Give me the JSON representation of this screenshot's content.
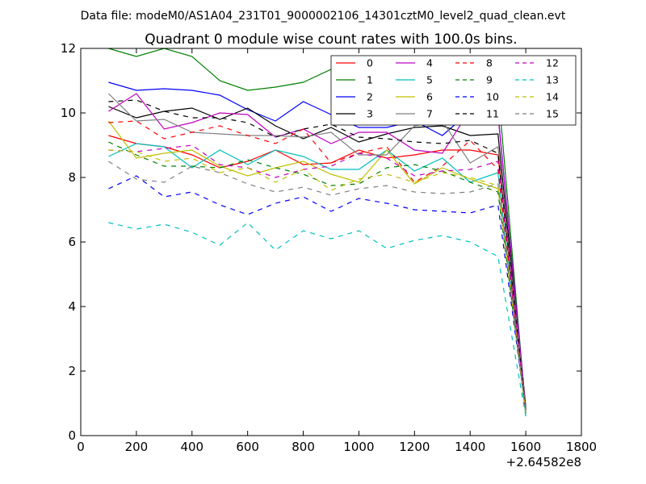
{
  "header": {
    "datafile": "Data file: modeM0/AS1A04_231T01_9000002106_14301cztM0_level2_quad_clean.evt"
  },
  "chart_data": {
    "type": "line",
    "title": "Quadrant 0 module wise count rates with 100.0s bins.",
    "xlabel": "",
    "ylabel": "",
    "x_offset_label": "+2.64582e8",
    "xlim": [
      0,
      1800
    ],
    "ylim": [
      0,
      12
    ],
    "x_ticks": [
      "0",
      "200",
      "400",
      "600",
      "800",
      "1000",
      "1200",
      "1400",
      "1600",
      "1800"
    ],
    "y_ticks": [
      "0",
      "2",
      "4",
      "6",
      "8",
      "10",
      "12"
    ],
    "grid": false,
    "legend_position": "top-right",
    "x": [
      100,
      200,
      300,
      400,
      500,
      600,
      700,
      800,
      900,
      1000,
      1100,
      1200,
      1300,
      1400,
      1500,
      1600
    ],
    "series": [
      {
        "name": "0",
        "color": "#ff0000",
        "dash": "solid",
        "values": [
          9.3,
          9.05,
          8.95,
          8.7,
          8.3,
          8.5,
          8.85,
          8.4,
          8.45,
          8.85,
          8.6,
          8.7,
          8.85,
          8.85,
          8.7,
          0.7
        ]
      },
      {
        "name": "1",
        "color": "#008000",
        "dash": "solid",
        "values": [
          12.0,
          11.75,
          12.0,
          11.75,
          11.0,
          10.7,
          10.8,
          10.95,
          11.35,
          10.6,
          10.25,
          11.0,
          10.55,
          10.85,
          10.8,
          0.75
        ]
      },
      {
        "name": "2",
        "color": "#0000ff",
        "dash": "solid",
        "values": [
          10.95,
          10.7,
          10.75,
          10.7,
          10.55,
          10.1,
          9.75,
          10.35,
          9.95,
          9.55,
          9.55,
          9.75,
          9.3,
          10.05,
          10.0,
          0.85
        ]
      },
      {
        "name": "3",
        "color": "#000000",
        "dash": "solid",
        "values": [
          10.2,
          9.85,
          10.05,
          10.15,
          9.8,
          10.15,
          9.6,
          9.2,
          9.55,
          9.1,
          9.35,
          9.55,
          9.6,
          9.3,
          9.35,
          0.9
        ]
      },
      {
        "name": "4",
        "color": "#bf00bf",
        "dash": "solid",
        "values": [
          10.05,
          10.6,
          9.5,
          9.7,
          10.0,
          9.95,
          9.25,
          9.5,
          9.05,
          9.4,
          9.4,
          8.85,
          8.75,
          10.1,
          9.95,
          0.8
        ]
      },
      {
        "name": "5",
        "color": "#00bfbf",
        "dash": "solid",
        "values": [
          8.65,
          9.05,
          8.95,
          8.3,
          8.85,
          8.4,
          8.85,
          8.65,
          8.25,
          8.25,
          8.85,
          8.2,
          8.6,
          7.85,
          8.15,
          0.6
        ]
      },
      {
        "name": "6",
        "color": "#bfbf00",
        "dash": "solid",
        "values": [
          9.75,
          8.6,
          8.75,
          8.85,
          8.35,
          8.05,
          8.3,
          8.5,
          8.1,
          7.85,
          8.85,
          7.8,
          8.3,
          7.95,
          7.65,
          0.7
        ]
      },
      {
        "name": "7",
        "color": "#808080",
        "dash": "solid",
        "values": [
          10.6,
          9.75,
          9.8,
          9.4,
          9.35,
          9.3,
          9.3,
          9.25,
          9.4,
          8.7,
          8.7,
          9.6,
          9.75,
          8.45,
          8.95,
          0.8
        ]
      },
      {
        "name": "8",
        "color": "#ff0000",
        "dash": "dashed",
        "values": [
          9.7,
          9.75,
          9.2,
          9.4,
          9.6,
          9.3,
          9.05,
          9.5,
          8.45,
          8.75,
          8.95,
          7.85,
          8.35,
          9.15,
          8.25,
          0.75
        ]
      },
      {
        "name": "9",
        "color": "#008000",
        "dash": "dashed",
        "values": [
          9.1,
          8.7,
          8.35,
          8.35,
          8.3,
          8.55,
          8.3,
          8.1,
          7.75,
          7.8,
          8.3,
          8.4,
          8.2,
          7.85,
          7.55,
          0.7
        ]
      },
      {
        "name": "10",
        "color": "#0000ff",
        "dash": "dashed",
        "values": [
          7.65,
          8.05,
          7.4,
          7.55,
          7.15,
          6.85,
          7.2,
          7.4,
          6.95,
          7.35,
          7.2,
          7.0,
          6.95,
          6.9,
          7.15,
          0.75
        ]
      },
      {
        "name": "11",
        "color": "#000000",
        "dash": "dashed",
        "values": [
          10.35,
          10.4,
          10.05,
          9.85,
          9.85,
          9.7,
          9.25,
          9.5,
          9.65,
          9.25,
          9.2,
          9.1,
          9.05,
          9.15,
          8.75,
          0.8
        ]
      },
      {
        "name": "12",
        "color": "#bf00bf",
        "dash": "dashed",
        "values": [
          8.85,
          8.8,
          8.9,
          9.0,
          8.4,
          8.3,
          8.0,
          8.25,
          8.35,
          8.75,
          8.6,
          8.05,
          8.2,
          8.25,
          8.5,
          0.75
        ]
      },
      {
        "name": "13",
        "color": "#00bfbf",
        "dash": "dashed",
        "values": [
          6.6,
          6.4,
          6.55,
          6.3,
          5.9,
          6.6,
          5.75,
          6.35,
          6.1,
          6.35,
          5.8,
          6.05,
          6.2,
          6.0,
          5.55,
          0.6
        ]
      },
      {
        "name": "14",
        "color": "#bfbf00",
        "dash": "dashed",
        "values": [
          8.85,
          8.8,
          8.5,
          8.6,
          8.15,
          8.3,
          7.85,
          8.25,
          7.6,
          7.95,
          8.1,
          7.85,
          8.15,
          8.0,
          7.75,
          0.7
        ]
      },
      {
        "name": "15",
        "color": "#808080",
        "dash": "dashed",
        "values": [
          8.5,
          7.95,
          7.85,
          8.35,
          8.15,
          7.8,
          7.55,
          7.7,
          7.45,
          7.65,
          7.75,
          7.55,
          7.5,
          7.55,
          7.8,
          0.75
        ]
      }
    ]
  }
}
